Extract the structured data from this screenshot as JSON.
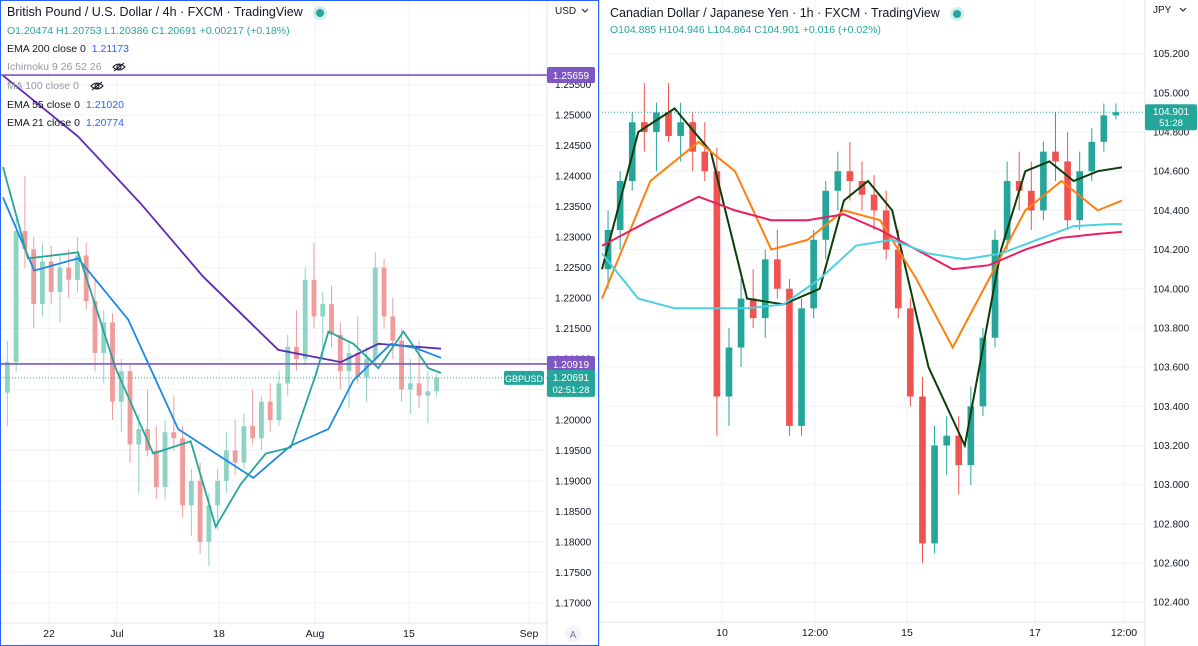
{
  "left": {
    "title": "British Pound / U.S. Dollar",
    "interval": "4h",
    "exchange": "FXCM",
    "platform": "TradingView",
    "ohlc": {
      "open": "O1.20474",
      "high": "H1.20753",
      "low": "L1.20386",
      "close": "C1.20691",
      "change": "+0.00217 (+0.18%)"
    },
    "indicators": [
      {
        "label": "EMA 200 close 0",
        "value": "1.21173",
        "color": "#2962ff"
      },
      {
        "label": "Ichimoku 9 26 52 26",
        "value": "",
        "hidden": true
      },
      {
        "label": "MA 100 close 0",
        "value": "",
        "hidden": true
      },
      {
        "label": "EMA 55 close 0",
        "value": "1.21020",
        "color": "#2962ff"
      },
      {
        "label": "EMA 21 close 0",
        "value": "1.20774",
        "color": "#2962ff"
      }
    ],
    "currency": "USD",
    "symbol_tag": "GBPUSD",
    "price_label": "1.20691",
    "countdown": "02:51:28",
    "hline_labels": [
      "1.25659",
      "1.20919"
    ],
    "auto_button": "A"
  },
  "right": {
    "title": "Canadian Dollar / Japanese Yen",
    "interval": "1h",
    "exchange": "FXCM",
    "platform": "TradingView",
    "ohlc": {
      "open": "O104.885",
      "high": "H104.946",
      "low": "L104.864",
      "close": "C104.901",
      "change": "+0.016 (+0.02%)"
    },
    "currency": "JPY",
    "price_label": "104.901",
    "countdown": "51:28"
  },
  "chart_data": [
    {
      "type": "candlestick",
      "title": "British Pound / U.S. Dollar · 4h · FXCM",
      "x_ticks": [
        "22",
        "Jul",
        "18",
        "Aug",
        "15",
        "Sep"
      ],
      "y_ticks": [
        "1.25500",
        "1.25000",
        "1.24500",
        "1.24000",
        "1.23500",
        "1.23000",
        "1.22500",
        "1.22000",
        "1.21500",
        "1.21000",
        "1.20500",
        "1.20000",
        "1.19500",
        "1.19000",
        "1.18500",
        "1.18000",
        "1.17500",
        "1.17000"
      ],
      "ylim": [
        1.1685,
        1.2625
      ],
      "horizontal_lines": [
        1.25659,
        1.20919
      ],
      "last_price": 1.20691,
      "series": [
        {
          "name": "EMA 200 close 0",
          "color": "#5b2bb5",
          "x": [
            0,
            12,
            22,
            32,
            44,
            54,
            60,
            70
          ],
          "y": [
            1.2565,
            1.2465,
            1.2355,
            1.2235,
            1.2115,
            1.2095,
            1.2125,
            1.2117
          ]
        },
        {
          "name": "EMA 55 close 0",
          "color": "#1e88e5",
          "x": [
            0,
            5,
            12,
            20,
            28,
            34,
            40,
            46,
            52,
            56,
            62,
            66,
            70
          ],
          "y": [
            1.2365,
            1.2245,
            1.2265,
            1.2165,
            1.1985,
            1.1945,
            1.1905,
            1.1958,
            1.1985,
            1.2065,
            1.2125,
            1.2118,
            1.2102
          ]
        },
        {
          "name": "EMA 21 close 0",
          "color": "#26a69a",
          "x": [
            0,
            4,
            12,
            18,
            24,
            30,
            34,
            38,
            42,
            46,
            50,
            52,
            56,
            60,
            64,
            68,
            70
          ],
          "y": [
            1.2415,
            1.2265,
            1.2275,
            1.2085,
            1.1945,
            1.1965,
            1.1825,
            1.1895,
            1.1945,
            1.1955,
            1.2075,
            1.2145,
            1.2125,
            1.2085,
            1.2145,
            1.2085,
            1.2077
          ]
        }
      ],
      "candles_ohlc": [
        [
          1.2045,
          1.213,
          1.199,
          1.2095
        ],
        [
          1.2095,
          1.233,
          1.208,
          1.231
        ],
        [
          1.231,
          1.24,
          1.225,
          1.228
        ],
        [
          1.228,
          1.23,
          1.215,
          1.219
        ],
        [
          1.219,
          1.229,
          1.217,
          1.226
        ],
        [
          1.226,
          1.2285,
          1.219,
          1.221
        ],
        [
          1.221,
          1.227,
          1.216,
          1.225
        ],
        [
          1.225,
          1.228,
          1.22,
          1.223
        ],
        [
          1.223,
          1.23,
          1.221,
          1.227
        ],
        [
          1.227,
          1.229,
          1.218,
          1.2195
        ],
        [
          1.2195,
          1.223,
          1.208,
          1.211
        ],
        [
          1.211,
          1.218,
          1.206,
          1.216
        ],
        [
          1.216,
          1.2175,
          1.2,
          1.203
        ],
        [
          1.203,
          1.21,
          1.198,
          1.208
        ],
        [
          1.208,
          1.209,
          1.193,
          1.196
        ],
        [
          1.196,
          1.201,
          1.188,
          1.1985
        ],
        [
          1.1985,
          1.205,
          1.194,
          1.195
        ],
        [
          1.195,
          1.199,
          1.187,
          1.189
        ],
        [
          1.189,
          1.2,
          1.187,
          1.198
        ],
        [
          1.198,
          1.204,
          1.195,
          1.197
        ],
        [
          1.197,
          1.199,
          1.184,
          1.186
        ],
        [
          1.186,
          1.192,
          1.181,
          1.19
        ],
        [
          1.19,
          1.193,
          1.178,
          1.18
        ],
        [
          1.18,
          1.188,
          1.176,
          1.186
        ],
        [
          1.186,
          1.192,
          1.182,
          1.19
        ],
        [
          1.19,
          1.198,
          1.188,
          1.195
        ],
        [
          1.195,
          1.2,
          1.191,
          1.193
        ],
        [
          1.193,
          1.201,
          1.192,
          1.199
        ],
        [
          1.199,
          1.205,
          1.196,
          1.197
        ],
        [
          1.197,
          1.204,
          1.195,
          1.203
        ],
        [
          1.203,
          1.206,
          1.198,
          1.2
        ],
        [
          1.2,
          1.208,
          1.199,
          1.206
        ],
        [
          1.206,
          1.214,
          1.204,
          1.212
        ],
        [
          1.212,
          1.218,
          1.208,
          1.21
        ],
        [
          1.21,
          1.225,
          1.209,
          1.223
        ],
        [
          1.223,
          1.229,
          1.215,
          1.217
        ],
        [
          1.217,
          1.221,
          1.21,
          1.219
        ],
        [
          1.219,
          1.222,
          1.212,
          1.214
        ],
        [
          1.214,
          1.216,
          1.205,
          1.208
        ],
        [
          1.208,
          1.213,
          1.202,
          1.211
        ],
        [
          1.211,
          1.217,
          1.206,
          1.207
        ],
        [
          1.207,
          1.212,
          1.203,
          1.21
        ],
        [
          1.21,
          1.2275,
          1.209,
          1.225
        ],
        [
          1.225,
          1.2265,
          1.215,
          1.217
        ],
        [
          1.217,
          1.22,
          1.21,
          1.213
        ],
        [
          1.213,
          1.215,
          1.203,
          1.205
        ],
        [
          1.205,
          1.21,
          1.201,
          1.206
        ],
        [
          1.206,
          1.213,
          1.202,
          1.204
        ],
        [
          1.204,
          1.208,
          1.1995,
          1.2047
        ],
        [
          1.2047,
          1.2075,
          1.2039,
          1.2069
        ]
      ]
    },
    {
      "type": "candlestick",
      "title": "Canadian Dollar / Japanese Yen · 1h · FXCM",
      "x_ticks": [
        "10",
        "12:00",
        "15",
        "17",
        "12:00"
      ],
      "y_ticks": [
        "105.200",
        "105.000",
        "104.800",
        "104.600",
        "104.400",
        "104.200",
        "104.000",
        "103.800",
        "103.600",
        "103.400",
        "103.200",
        "103.000",
        "102.800",
        "102.600",
        "102.400"
      ],
      "ylim": [
        102.35,
        105.28
      ],
      "last_price": 104.901,
      "series": [
        {
          "name": "",
          "color": "#0b3d0b",
          "x": [
            0,
            6,
            12,
            18,
            24,
            30,
            36,
            40,
            44,
            48,
            54,
            60,
            66,
            70,
            74,
            78,
            82,
            86
          ],
          "y": [
            104.1,
            104.8,
            104.92,
            104.7,
            103.95,
            103.92,
            104.0,
            104.45,
            104.55,
            104.4,
            103.6,
            103.2,
            104.2,
            104.6,
            104.65,
            104.55,
            104.6,
            104.62
          ]
        },
        {
          "name": "",
          "color": "#ff7f0e",
          "x": [
            0,
            8,
            16,
            22,
            28,
            34,
            40,
            46,
            52,
            58,
            64,
            70,
            76,
            82,
            86
          ],
          "y": [
            103.95,
            104.55,
            104.75,
            104.6,
            104.2,
            104.25,
            104.4,
            104.35,
            104.05,
            103.7,
            104.05,
            104.4,
            104.55,
            104.4,
            104.45
          ]
        },
        {
          "name": "",
          "color": "#e91e63",
          "x": [
            0,
            8,
            16,
            22,
            28,
            34,
            40,
            46,
            52,
            58,
            64,
            70,
            76,
            82,
            86
          ],
          "y": [
            104.22,
            104.35,
            104.47,
            104.4,
            104.35,
            104.35,
            104.38,
            104.3,
            104.2,
            104.1,
            104.12,
            104.2,
            104.26,
            104.28,
            104.29
          ]
        },
        {
          "name": "",
          "color": "#4dd0e1",
          "x": [
            0,
            6,
            12,
            18,
            24,
            30,
            36,
            42,
            48,
            54,
            60,
            66,
            72,
            78,
            84,
            86
          ],
          "y": [
            104.18,
            103.95,
            103.9,
            103.9,
            103.9,
            103.92,
            104.05,
            104.22,
            104.25,
            104.18,
            104.15,
            104.18,
            104.25,
            104.32,
            104.33,
            104.33
          ]
        }
      ],
      "candles_ohlc": [
        [
          104.1,
          104.4,
          104.0,
          104.3
        ],
        [
          104.3,
          104.6,
          104.2,
          104.55
        ],
        [
          104.55,
          104.9,
          104.5,
          104.85
        ],
        [
          104.85,
          105.05,
          104.7,
          104.8
        ],
        [
          104.8,
          104.95,
          104.6,
          104.9
        ],
        [
          104.9,
          105.05,
          104.75,
          104.78
        ],
        [
          104.78,
          104.95,
          104.65,
          104.85
        ],
        [
          104.85,
          104.9,
          104.6,
          104.7
        ],
        [
          104.7,
          104.85,
          104.55,
          104.6
        ],
        [
          104.6,
          104.72,
          103.25,
          103.45
        ],
        [
          103.45,
          103.8,
          103.3,
          103.7
        ],
        [
          103.7,
          104.05,
          103.6,
          103.95
        ],
        [
          103.95,
          104.1,
          103.8,
          103.85
        ],
        [
          103.85,
          104.2,
          103.75,
          104.15
        ],
        [
          104.15,
          104.3,
          103.95,
          104.0
        ],
        [
          104.0,
          104.05,
          103.25,
          103.3
        ],
        [
          103.3,
          103.95,
          103.25,
          103.9
        ],
        [
          103.9,
          104.3,
          103.85,
          104.25
        ],
        [
          104.25,
          104.55,
          104.15,
          104.5
        ],
        [
          104.5,
          104.7,
          104.4,
          104.6
        ],
        [
          104.6,
          104.75,
          104.45,
          104.55
        ],
        [
          104.55,
          104.65,
          104.4,
          104.48
        ],
        [
          104.48,
          104.58,
          104.3,
          104.4
        ],
        [
          104.4,
          104.5,
          104.15,
          104.2
        ],
        [
          104.2,
          104.3,
          103.85,
          103.9
        ],
        [
          103.9,
          103.95,
          103.4,
          103.45
        ],
        [
          103.45,
          103.55,
          102.6,
          102.7
        ],
        [
          102.7,
          103.3,
          102.65,
          103.2
        ],
        [
          103.2,
          103.35,
          103.05,
          103.25
        ],
        [
          103.25,
          103.35,
          102.95,
          103.1
        ],
        [
          103.1,
          103.5,
          103.0,
          103.4
        ],
        [
          103.4,
          103.8,
          103.35,
          103.75
        ],
        [
          103.75,
          104.3,
          103.7,
          104.25
        ],
        [
          104.25,
          104.65,
          104.2,
          104.55
        ],
        [
          104.55,
          104.7,
          104.4,
          104.5
        ],
        [
          104.5,
          104.65,
          104.3,
          104.4
        ],
        [
          104.4,
          104.75,
          104.35,
          104.7
        ],
        [
          104.7,
          104.9,
          104.55,
          104.65
        ],
        [
          104.65,
          104.8,
          104.3,
          104.35
        ],
        [
          104.35,
          104.7,
          104.3,
          104.6
        ],
        [
          104.6,
          104.82,
          104.55,
          104.75
        ],
        [
          104.75,
          104.946,
          104.7,
          104.885
        ],
        [
          104.885,
          104.946,
          104.864,
          104.901
        ]
      ]
    }
  ]
}
